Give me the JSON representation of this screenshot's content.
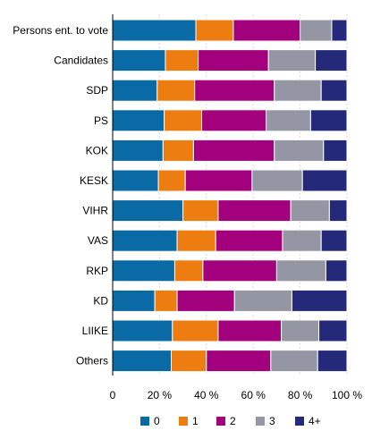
{
  "chart_data": {
    "type": "bar",
    "orientation": "horizontal",
    "stacked": true,
    "normalized": true,
    "categories": [
      "Persons ent. to vote",
      "Candidates",
      "SDP",
      "PS",
      "KOK",
      "KESK",
      "VIHR",
      "VAS",
      "RKP",
      "KD",
      "LIIKE",
      "Others"
    ],
    "series": [
      {
        "name": "0",
        "color": "#0a6aa5",
        "values": [
          35.5,
          22.5,
          19.0,
          22.0,
          21.5,
          19.5,
          30.0,
          27.5,
          26.5,
          18.0,
          25.5,
          25.0
        ]
      },
      {
        "name": "1",
        "color": "#ee7d11",
        "values": [
          16.0,
          14.0,
          16.0,
          16.0,
          13.0,
          11.5,
          15.0,
          16.5,
          12.0,
          9.5,
          19.5,
          15.0
        ]
      },
      {
        "name": "2",
        "color": "#a3007d",
        "values": [
          28.5,
          30.0,
          34.0,
          27.5,
          34.5,
          28.5,
          31.0,
          28.5,
          31.5,
          24.5,
          27.0,
          27.5
        ]
      },
      {
        "name": "3",
        "color": "#9497a3",
        "values": [
          13.5,
          20.0,
          20.0,
          19.0,
          21.0,
          21.5,
          16.5,
          16.5,
          21.0,
          24.5,
          16.0,
          20.0
        ]
      },
      {
        "name": "4+",
        "color": "#24297a",
        "values": [
          6.5,
          13.5,
          11.0,
          15.5,
          10.0,
          19.0,
          7.5,
          11.0,
          9.0,
          23.5,
          12.0,
          12.5
        ]
      }
    ],
    "xlim": [
      0,
      100
    ],
    "x_ticks": [
      "0",
      "20 %",
      "40 %",
      "60 %",
      "80 %",
      "100 %"
    ],
    "grid": true,
    "legend_position": "bottom"
  }
}
